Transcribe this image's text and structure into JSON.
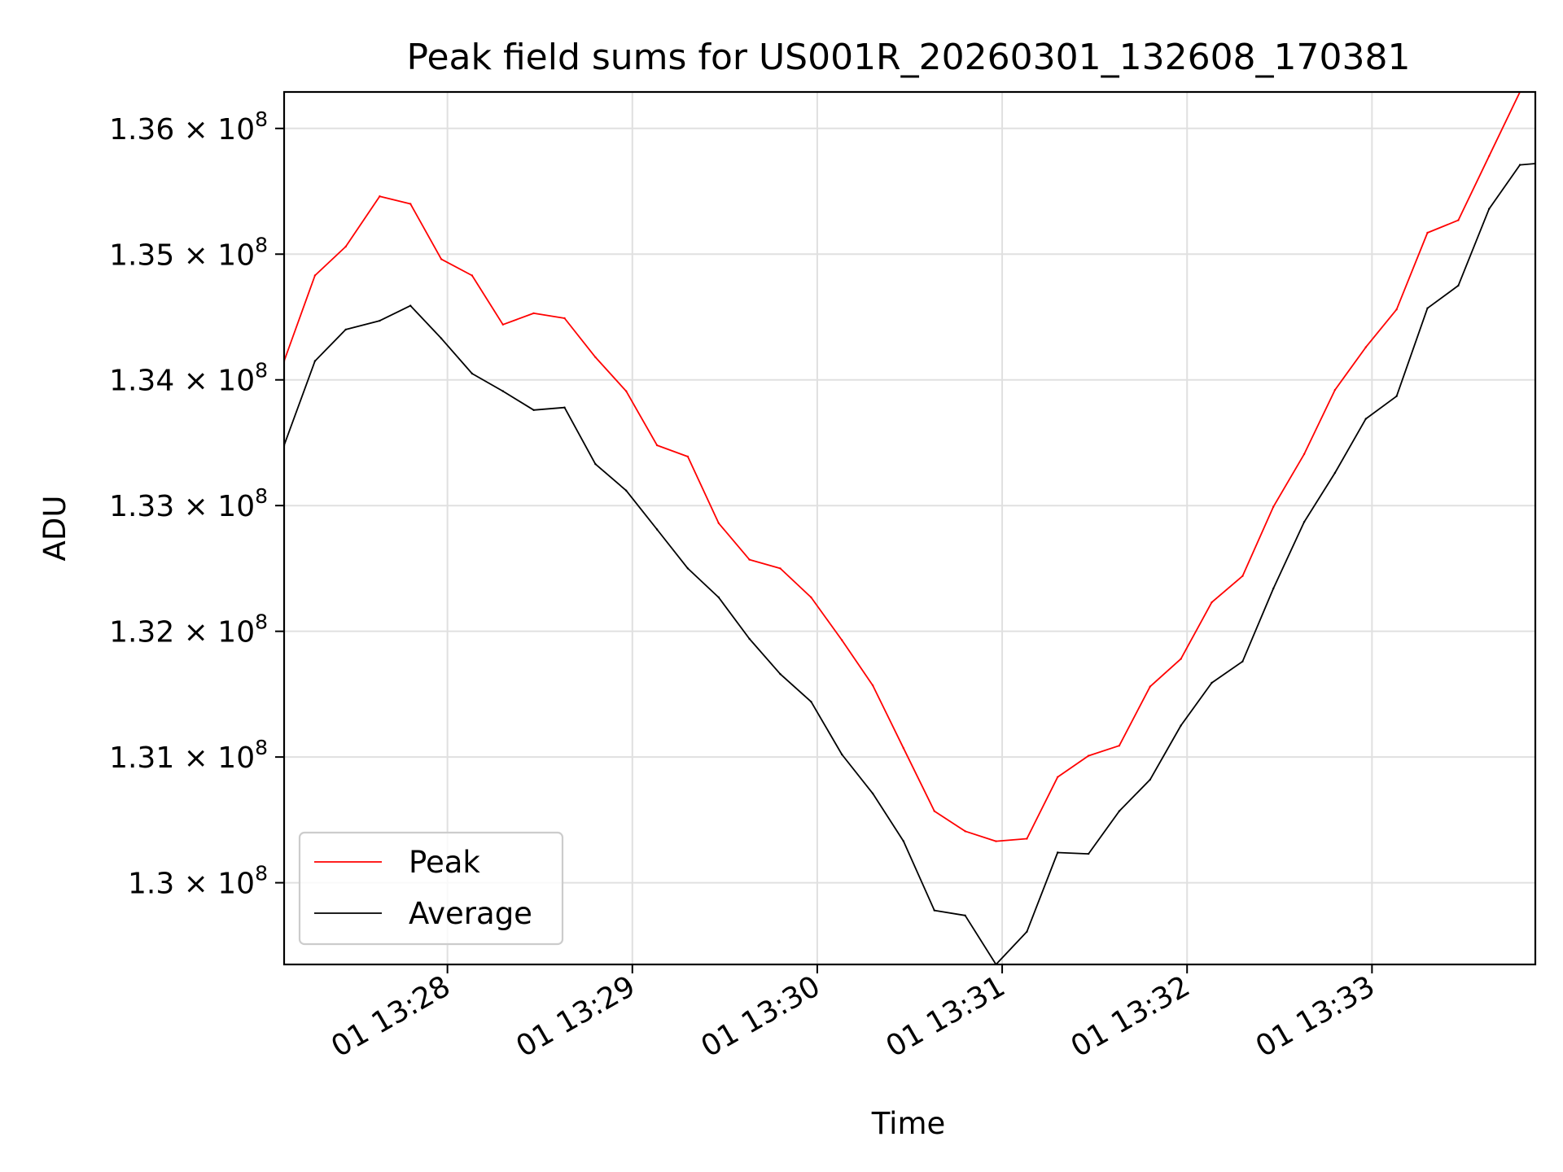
{
  "chart_data": {
    "type": "line",
    "title": "Peak field sums for US001R_20260301_132608_170381",
    "xlabel": "Time",
    "ylabel": "ADU",
    "x_tick_labels": [
      "01 13:28",
      "01 13:29",
      "01 13:30",
      "01 13:31",
      "01 13:32",
      "01 13:33"
    ],
    "x_tick_values": [
      "13:28:00",
      "13:29:00",
      "13:30:00",
      "13:31:00",
      "13:32:00",
      "13:33:00"
    ],
    "y_tick_labels": [
      "1.3",
      "1.31",
      "1.32",
      "1.33",
      "1.34",
      "1.35",
      "1.36"
    ],
    "y_tick_exponent": "8",
    "y_tick_values": [
      130000000,
      131000000,
      132000000,
      133000000,
      134000000,
      135000000,
      136000000
    ],
    "xlim": [
      "13:27:07",
      "13:33:53"
    ],
    "ylim": [
      129350000,
      136290000
    ],
    "grid": true,
    "legend": "lower-left",
    "x": [
      "13:27:07",
      "13:27:17",
      "13:27:27",
      "13:27:38",
      "13:27:48",
      "13:27:58",
      "13:28:08",
      "13:28:18",
      "13:28:28",
      "13:28:38",
      "13:28:48",
      "13:28:58",
      "13:29:08",
      "13:29:18",
      "13:29:28",
      "13:29:38",
      "13:29:48",
      "13:29:58",
      "13:30:08",
      "13:30:18",
      "13:30:28",
      "13:30:38",
      "13:30:48",
      "13:30:58",
      "13:31:08",
      "13:31:18",
      "13:31:28",
      "13:31:38",
      "13:31:48",
      "13:31:58",
      "13:32:08",
      "13:32:18",
      "13:32:28",
      "13:32:38",
      "13:32:48",
      "13:32:58",
      "13:33:08",
      "13:33:18",
      "13:33:28",
      "13:33:38",
      "13:33:48",
      "13:33:53"
    ],
    "series": [
      {
        "name": "Peak",
        "color": "#ff0000",
        "values": [
          134150000,
          134830000,
          135060000,
          135460000,
          135400000,
          134960000,
          134830000,
          134440000,
          134530000,
          134490000,
          134180000,
          133910000,
          133480000,
          133390000,
          132860000,
          132570000,
          132500000,
          132270000,
          131930000,
          131570000,
          131070000,
          130570000,
          130410000,
          130330000,
          130350000,
          130840000,
          131010000,
          131090000,
          131560000,
          131780000,
          132230000,
          132440000,
          132990000,
          133410000,
          133920000,
          134260000,
          134560000,
          135170000,
          135270000,
          135780000,
          136290000,
          136290000
        ]
      },
      {
        "name": "Average",
        "color": "#000000",
        "values": [
          133480000,
          134150000,
          134400000,
          134470000,
          134590000,
          134330000,
          134050000,
          133910000,
          133760000,
          133780000,
          133330000,
          133120000,
          132810000,
          132500000,
          132270000,
          131940000,
          131660000,
          131440000,
          131020000,
          130710000,
          130330000,
          129780000,
          129740000,
          129350000,
          129610000,
          130240000,
          130230000,
          130570000,
          130820000,
          131250000,
          131590000,
          131760000,
          132340000,
          132870000,
          133260000,
          133690000,
          133870000,
          134570000,
          134750000,
          135360000,
          135710000,
          135720000
        ]
      }
    ]
  }
}
